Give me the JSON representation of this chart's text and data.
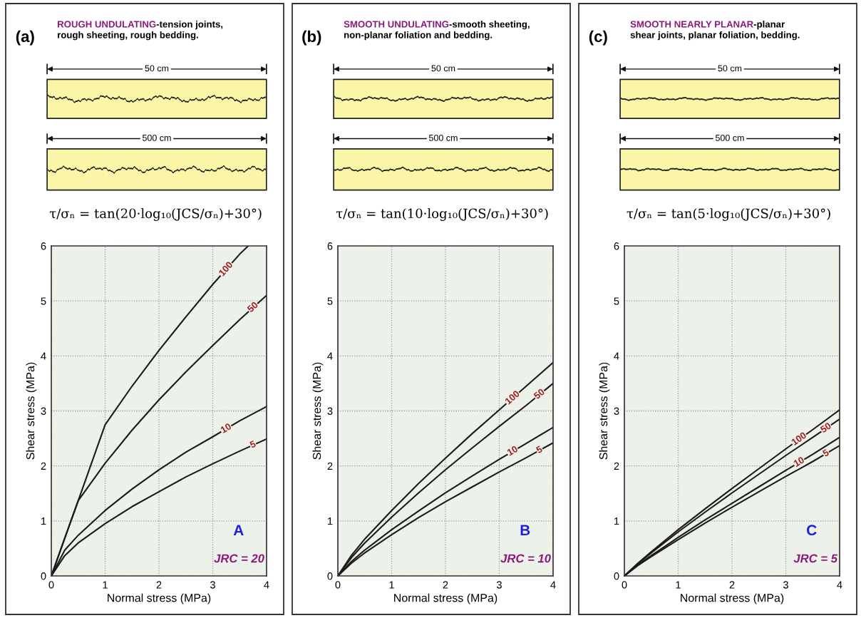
{
  "chart_data": [
    {
      "type": "line",
      "title": "(a)",
      "subtitle": "ROUGH UNDULATING",
      "annotations": [
        "-tension joints,\nrough sheeting, rough bedding.",
        "50 cm",
        "500 cm",
        "τ/σₙ = tan(20·log₁₀(JCS/σₙ)+30°)",
        "A",
        "JRC = 20"
      ],
      "xlabel": "Normal stress (MPa)",
      "ylabel": "Shear stress (MPa)",
      "xlim": [
        0,
        4
      ],
      "ylim": [
        0,
        6
      ],
      "xticks": [
        0,
        1,
        2,
        3,
        4
      ],
      "yticks": [
        0,
        1,
        2,
        3,
        4,
        5,
        6
      ],
      "grid": true,
      "x": [
        0,
        0.25,
        0.5,
        1,
        1.5,
        2,
        2.5,
        3,
        3.5,
        4
      ],
      "series": [
        {
          "name": "100",
          "color": "#1a1a1a",
          "x": [
            0,
            0.5,
            1,
            1.5,
            2,
            2.5,
            3,
            3.5,
            3.66
          ],
          "values": [
            0,
            1.37,
            2.75,
            3.45,
            4.1,
            4.71,
            5.3,
            5.85,
            6.0
          ]
        },
        {
          "name": "50",
          "color": "#1a1a1a",
          "values": [
            0,
            0.69,
            1.37,
            2.05,
            2.65,
            3.2,
            3.71,
            4.19,
            4.66,
            5.1
          ]
        },
        {
          "name": "10",
          "color": "#1a1a1a",
          "values": [
            0,
            0.47,
            0.74,
            1.19,
            1.58,
            1.93,
            2.25,
            2.53,
            2.82,
            3.08
          ]
        },
        {
          "name": "5",
          "color": "#1a1a1a",
          "values": [
            0,
            0.37,
            0.6,
            0.95,
            1.26,
            1.53,
            1.8,
            2.04,
            2.27,
            2.49
          ]
        }
      ]
    },
    {
      "type": "line",
      "title": "(b)",
      "subtitle": "SMOOTH UNDULATING",
      "annotations": [
        "-smooth sheeting,\nnon-planar foliation and bedding.",
        "50 cm",
        "500 cm",
        "τ/σₙ = tan(10·log₁₀(JCS/σₙ)+30°)",
        "B",
        "JRC = 10"
      ],
      "xlabel": "Normal stress (MPa)",
      "ylabel": "Shear stress (MPa)",
      "xlim": [
        0,
        4
      ],
      "ylim": [
        0,
        6
      ],
      "xticks": [
        0,
        1,
        2,
        3,
        4
      ],
      "yticks": [
        0,
        1,
        2,
        3,
        4,
        5,
        6
      ],
      "grid": true,
      "x": [
        0,
        0.25,
        0.5,
        1,
        1.5,
        2,
        2.5,
        3,
        3.5,
        4
      ],
      "series": [
        {
          "name": "100",
          "color": "#1a1a1a",
          "values": [
            0,
            0.37,
            0.67,
            1.19,
            1.68,
            2.14,
            2.59,
            3.02,
            3.45,
            3.88
          ]
        },
        {
          "name": "50",
          "color": "#1a1a1a",
          "values": [
            0,
            0.33,
            0.6,
            1.07,
            1.51,
            1.93,
            2.33,
            2.72,
            3.1,
            3.5
          ]
        },
        {
          "name": "10",
          "color": "#1a1a1a",
          "values": [
            0,
            0.26,
            0.47,
            0.84,
            1.18,
            1.51,
            1.82,
            2.12,
            2.41,
            2.7
          ]
        },
        {
          "name": "5",
          "color": "#1a1a1a",
          "values": [
            0,
            0.23,
            0.42,
            0.75,
            1.06,
            1.35,
            1.62,
            1.89,
            2.15,
            2.42
          ]
        }
      ]
    },
    {
      "type": "line",
      "title": "(c)",
      "subtitle": "SMOOTH NEARLY PLANAR",
      "annotations": [
        "-planar\nshear joints, planar foliation, bedding.",
        "50 cm",
        "500 cm",
        "τ/σₙ = tan(5·log₁₀(JCS/σₙ)+30°)",
        "C",
        "JRC = 5"
      ],
      "xlabel": "Normal stress (MPa)",
      "ylabel": "Shear stress (MPa)",
      "xlim": [
        0,
        4
      ],
      "ylim": [
        0,
        6
      ],
      "xticks": [
        0,
        1,
        2,
        3,
        4
      ],
      "yticks": [
        0,
        1,
        2,
        3,
        4,
        5,
        6
      ],
      "grid": true,
      "x": [
        0,
        0.25,
        0.5,
        1,
        1.5,
        2,
        2.5,
        3,
        3.5,
        4
      ],
      "series": [
        {
          "name": "100",
          "color": "#1a1a1a",
          "values": [
            0,
            0.23,
            0.44,
            0.84,
            1.22,
            1.59,
            1.95,
            2.31,
            2.66,
            3.02
          ]
        },
        {
          "name": "50",
          "color": "#1a1a1a",
          "values": [
            0,
            0.22,
            0.42,
            0.8,
            1.16,
            1.51,
            1.85,
            2.19,
            2.52,
            2.85
          ]
        },
        {
          "name": "10",
          "color": "#1a1a1a",
          "values": [
            0,
            0.2,
            0.37,
            0.7,
            1.02,
            1.32,
            1.62,
            1.92,
            2.21,
            2.52
          ]
        },
        {
          "name": "5",
          "color": "#1a1a1a",
          "values": [
            0,
            0.19,
            0.35,
            0.66,
            0.96,
            1.25,
            1.53,
            1.81,
            2.08,
            2.37
          ]
        }
      ]
    }
  ]
}
